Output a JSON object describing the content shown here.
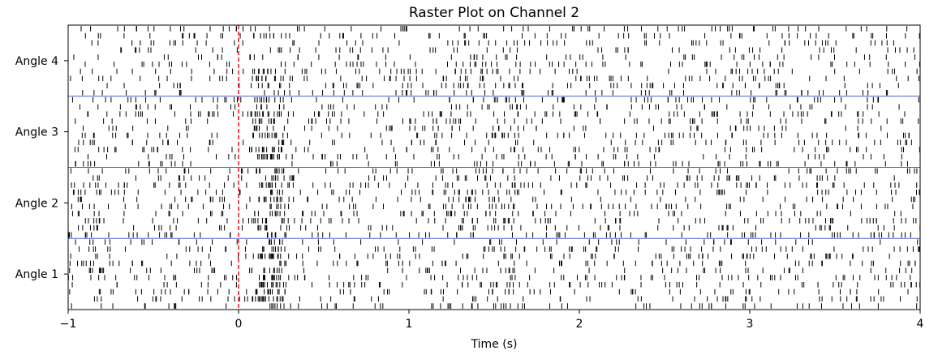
{
  "chart_data": {
    "type": "raster",
    "title": "Raster Plot on Channel 2",
    "xlabel": "Time (s)",
    "ylabel": "",
    "xlim": [
      -1,
      4
    ],
    "xticks": [
      -1,
      0,
      1,
      2,
      3,
      4
    ],
    "xtick_labels": [
      "−1",
      "0",
      "1",
      "2",
      "3",
      "4"
    ],
    "groups": [
      "Angle 1",
      "Angle 2",
      "Angle 3",
      "Angle 4"
    ],
    "trials_per_group": 10,
    "group_separator_color": "#4a5fd0",
    "stimulus_onset": {
      "x": 0,
      "color": "#e8000b",
      "style": "dashed"
    },
    "spike_color": "#000000",
    "grid": false
  }
}
